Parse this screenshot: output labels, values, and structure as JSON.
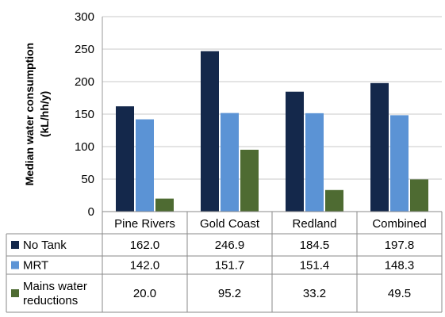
{
  "chart_data": {
    "type": "bar",
    "title": "",
    "xlabel": "",
    "ylabel": "Median water consumption (kL/hh/y)",
    "ylabel_lines": [
      "Median water consumption",
      "(kL/hh/y)"
    ],
    "ylim": [
      0,
      300
    ],
    "yticks": [
      0,
      50,
      100,
      150,
      200,
      250,
      300
    ],
    "grid": true,
    "legend": "data-table",
    "categories": [
      "Pine Rivers",
      "Gold Coast",
      "Redland",
      "Combined"
    ],
    "series": [
      {
        "name": "No Tank",
        "name_lines": [
          "No Tank"
        ],
        "color": "#14284b",
        "values": [
          162.0,
          246.9,
          184.5,
          197.8
        ],
        "labels": [
          "162.0",
          "246.9",
          "184.5",
          "197.8"
        ]
      },
      {
        "name": "MRT",
        "name_lines": [
          "MRT"
        ],
        "color": "#5b93d5",
        "values": [
          142.0,
          151.7,
          151.4,
          148.3
        ],
        "labels": [
          "142.0",
          "151.7",
          "151.4",
          "148.3"
        ]
      },
      {
        "name": "Mains water reductions",
        "name_lines": [
          "Mains water",
          "reductions"
        ],
        "color": "#4e6b32",
        "values": [
          20.0,
          95.2,
          33.2,
          49.5
        ],
        "labels": [
          "20.0",
          "95.2",
          "33.2",
          "49.5"
        ]
      }
    ]
  }
}
